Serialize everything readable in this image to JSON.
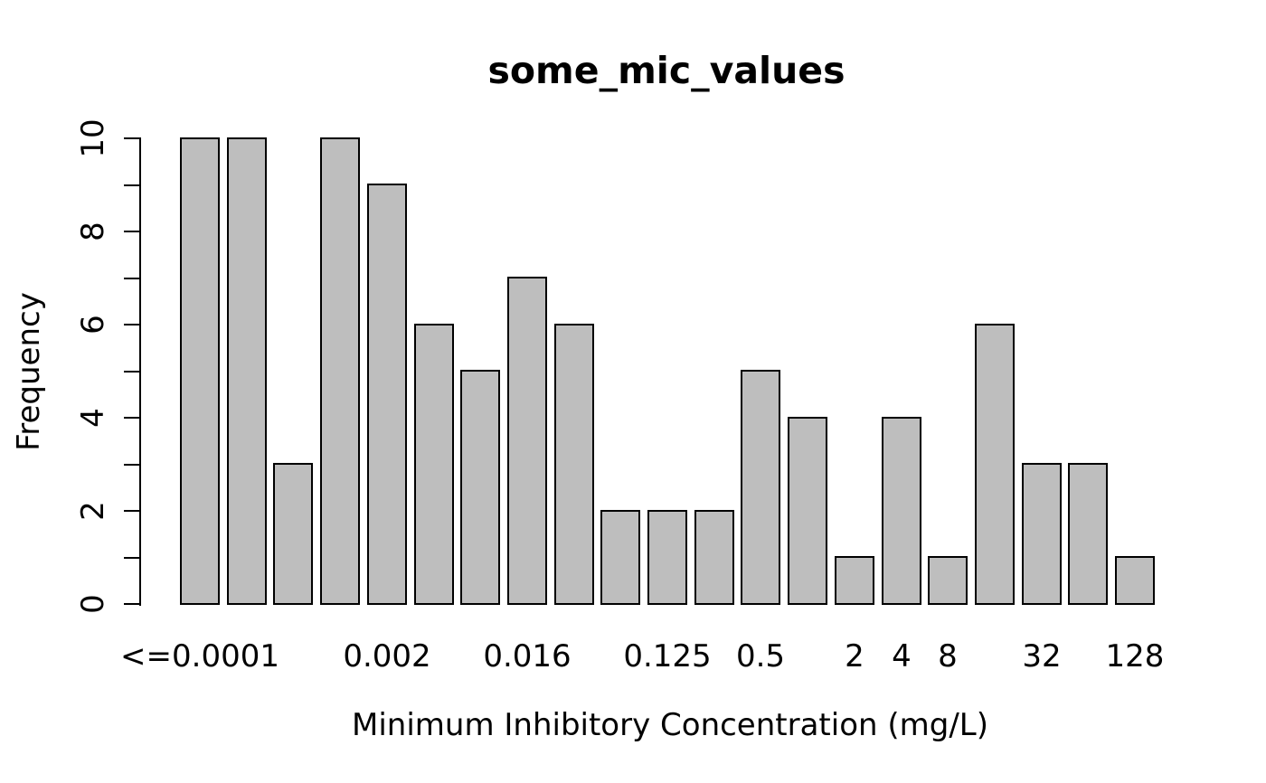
{
  "chart_data": {
    "type": "bar",
    "title": "some_mic_values",
    "xlabel": "Minimum Inhibitory Concentration (mg/L)",
    "ylabel": "Frequency",
    "ylim": [
      0,
      10
    ],
    "y_tick_step_minor": 1,
    "y_tick_labels": [
      "0",
      "2",
      "4",
      "6",
      "8",
      "10"
    ],
    "y_tick_label_values": [
      0,
      2,
      4,
      6,
      8,
      10
    ],
    "categories": [
      "<=0.0001",
      "",
      "",
      "",
      "0.002",
      "",
      "",
      "0.016",
      "",
      "",
      "0.125",
      "",
      "0.5",
      "",
      "2",
      "4",
      "8",
      "",
      "32",
      "",
      "128"
    ],
    "values": [
      10,
      10,
      3,
      10,
      9,
      6,
      5,
      7,
      6,
      2,
      2,
      2,
      5,
      4,
      1,
      4,
      1,
      6,
      3,
      3,
      1
    ],
    "grid": false,
    "legend": null,
    "colors": {
      "bar_fill": "#bebebe",
      "bar_border": "#000000",
      "text": "#000000",
      "background": "#ffffff"
    }
  }
}
